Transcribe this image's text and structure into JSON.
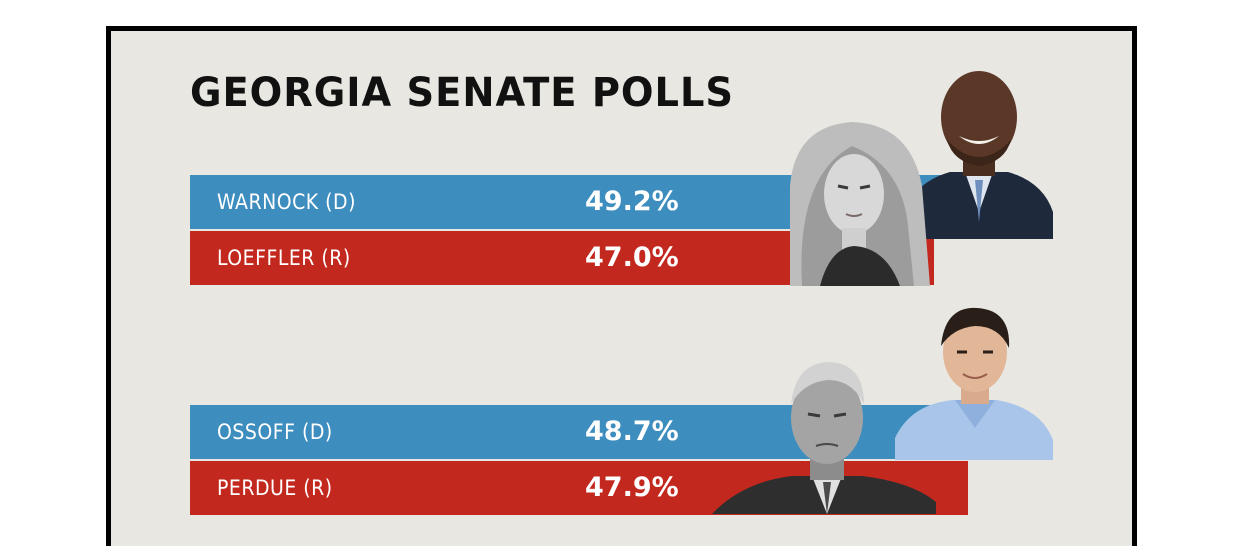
{
  "chart_data": {
    "type": "bar",
    "title": "GEORGIA SENATE POLLS",
    "races": [
      {
        "candidates": [
          {
            "name": "WARNOCK (D)",
            "value": 49.2,
            "label": "49.2%",
            "party": "D"
          },
          {
            "name": "LOEFFLER (R)",
            "value": 47.0,
            "label": "47.0%",
            "party": "R"
          }
        ]
      },
      {
        "candidates": [
          {
            "name": "OSSOFF (D)",
            "value": 48.7,
            "label": "48.7%",
            "party": "D"
          },
          {
            "name": "PERDUE (R)",
            "value": 47.9,
            "label": "47.9%",
            "party": "R"
          }
        ]
      }
    ],
    "colors": {
      "D": "#3d8dbe",
      "R": "#c3281e",
      "background": "#e9e7e2"
    }
  },
  "photos": [
    "warnock-portrait",
    "loeffler-portrait",
    "ossoff-portrait",
    "perdue-portrait"
  ]
}
